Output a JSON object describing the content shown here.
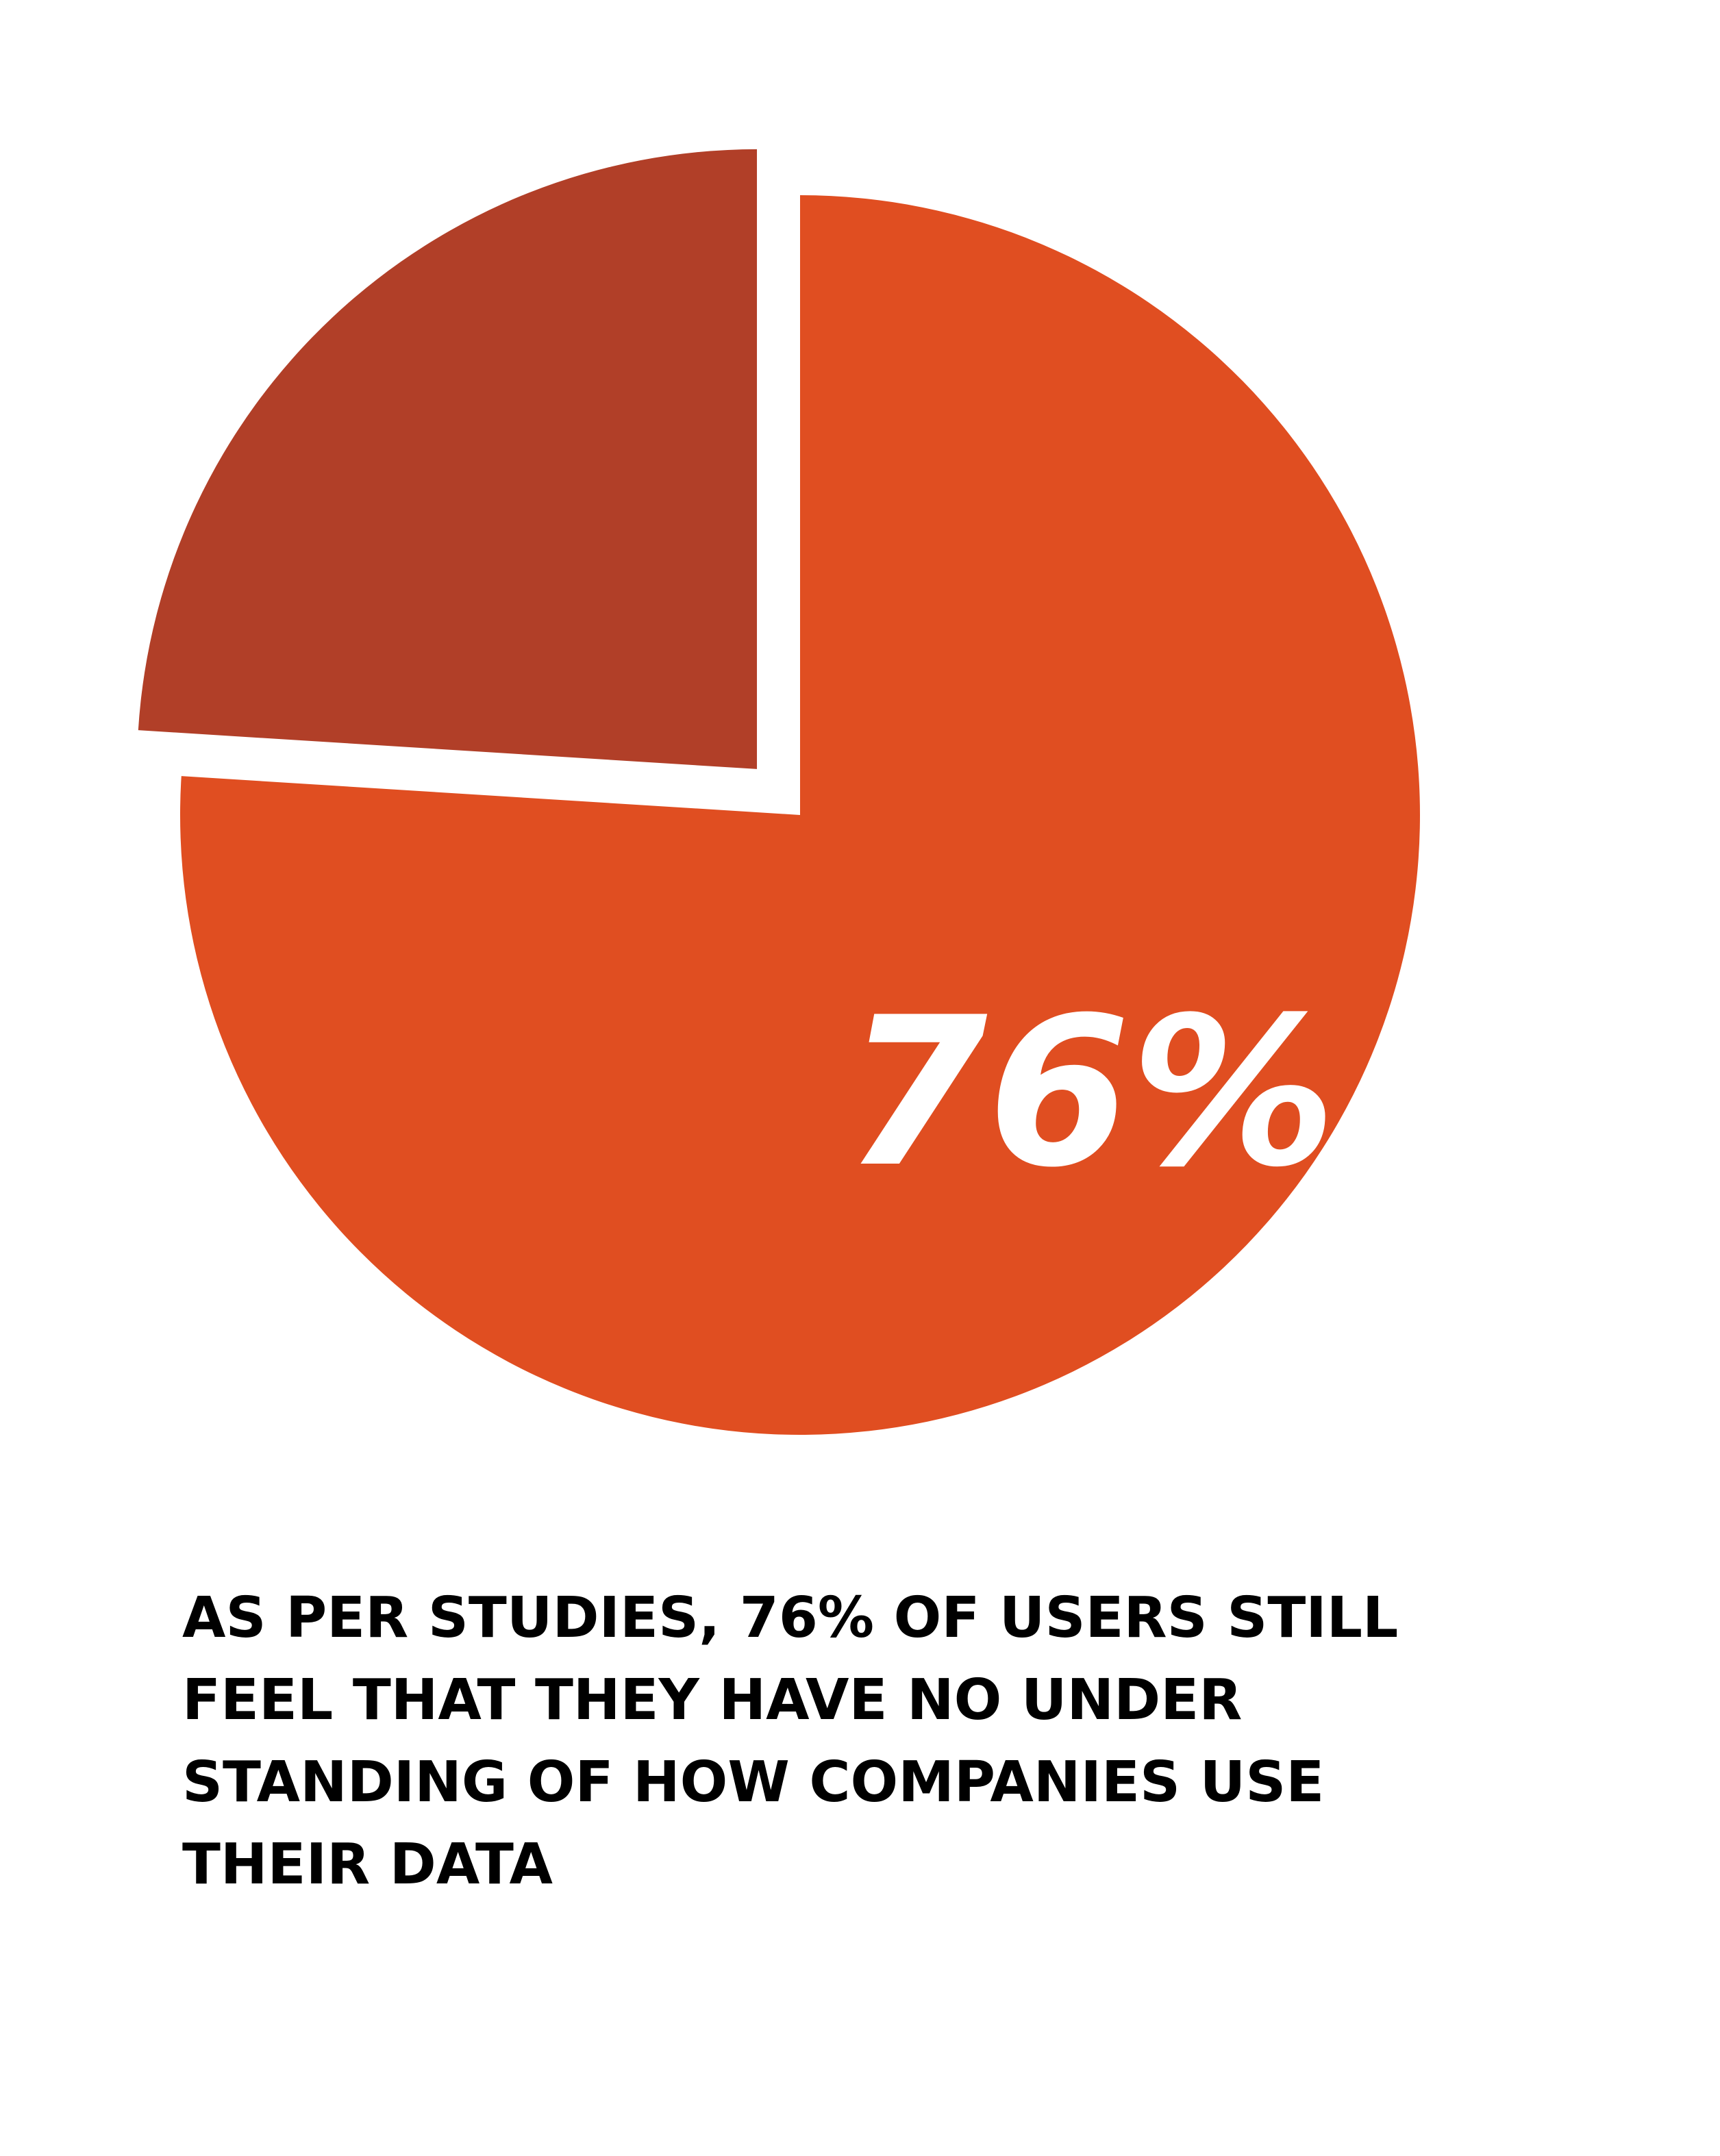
{
  "chart_data": {
    "type": "pie",
    "values": [
      76,
      24
    ],
    "value_labels": [
      "76%",
      null
    ],
    "colors": [
      "#e04e21",
      "#b13f28"
    ],
    "explode": [
      false,
      true
    ],
    "caption": [
      "AS PER STUDIES, 76% OF USERS STILL",
      "FEEL THAT THEY HAVE NO UNDER",
      "STANDING OF HOW COMPANIES USE",
      "THEIR DATA"
    ]
  }
}
